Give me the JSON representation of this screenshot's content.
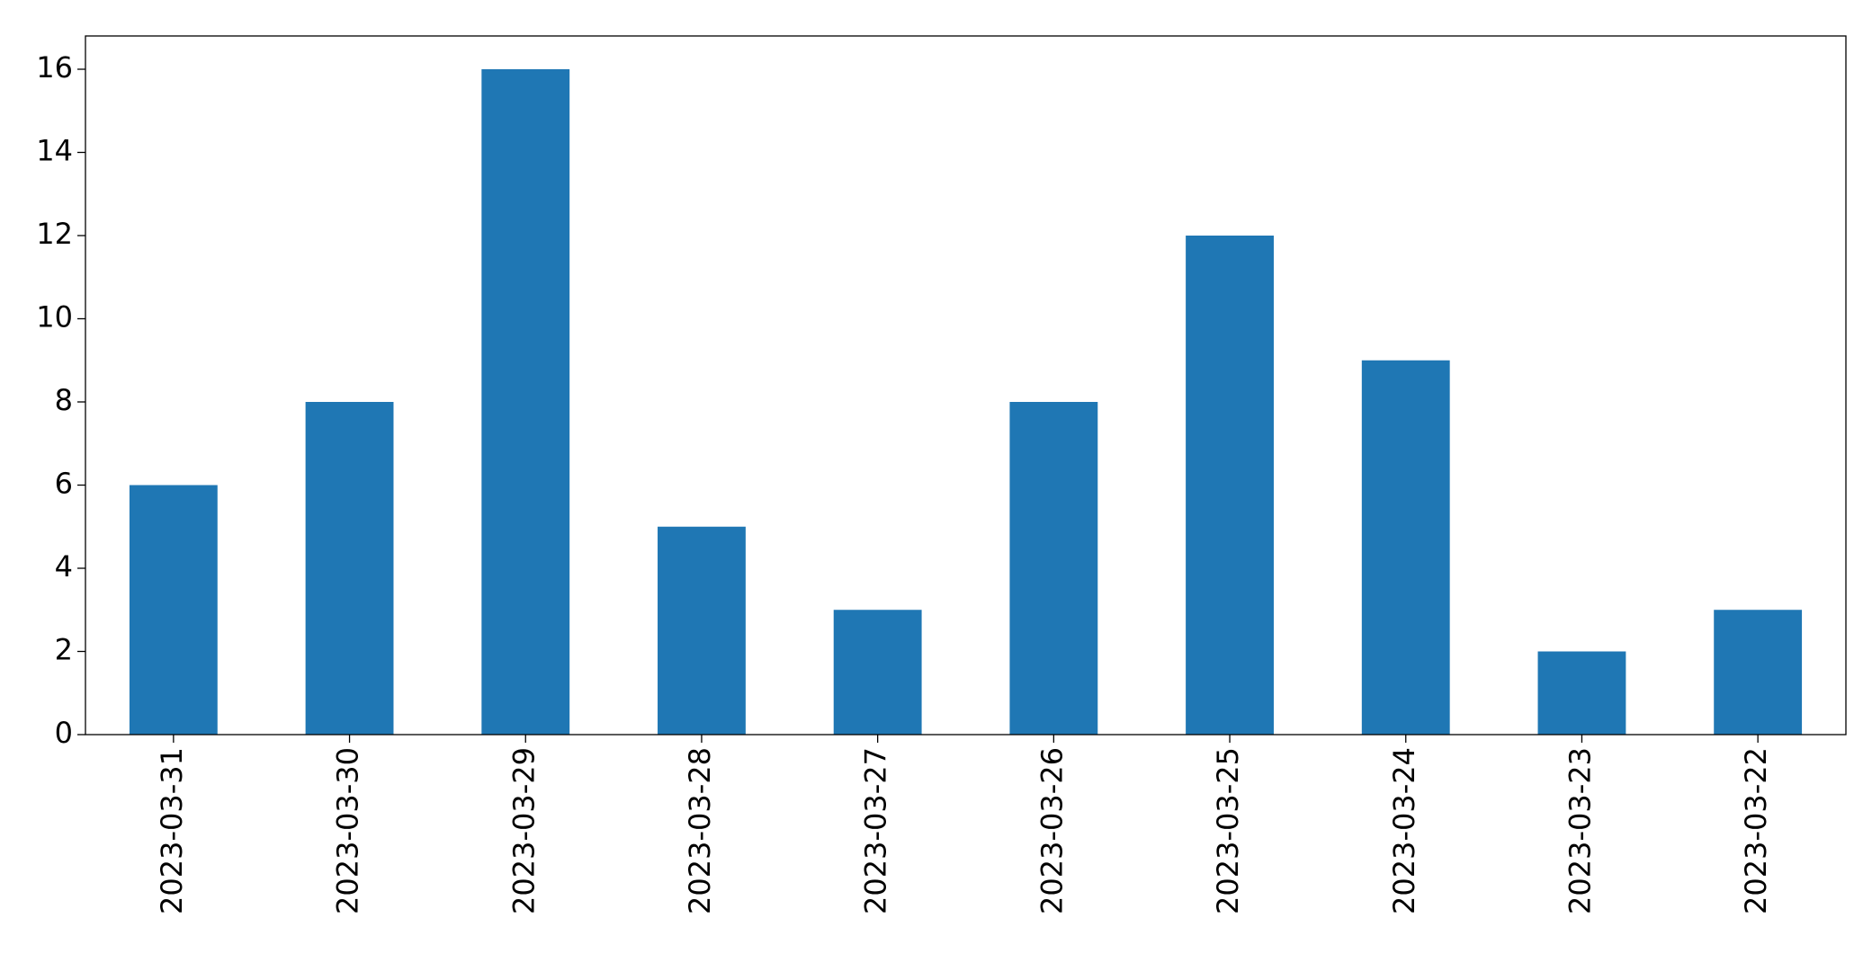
{
  "chart_data": {
    "type": "bar",
    "categories": [
      "2023-03-31",
      "2023-03-30",
      "2023-03-29",
      "2023-03-28",
      "2023-03-27",
      "2023-03-26",
      "2023-03-25",
      "2023-03-24",
      "2023-03-23",
      "2023-03-22"
    ],
    "values": [
      6,
      8,
      16,
      5,
      3,
      8,
      12,
      9,
      2,
      3
    ],
    "color": "#1f77b4",
    "ylim": [
      0,
      16.8
    ],
    "yticks": [
      0,
      2,
      4,
      6,
      8,
      10,
      12,
      14,
      16
    ],
    "grid": false
  }
}
